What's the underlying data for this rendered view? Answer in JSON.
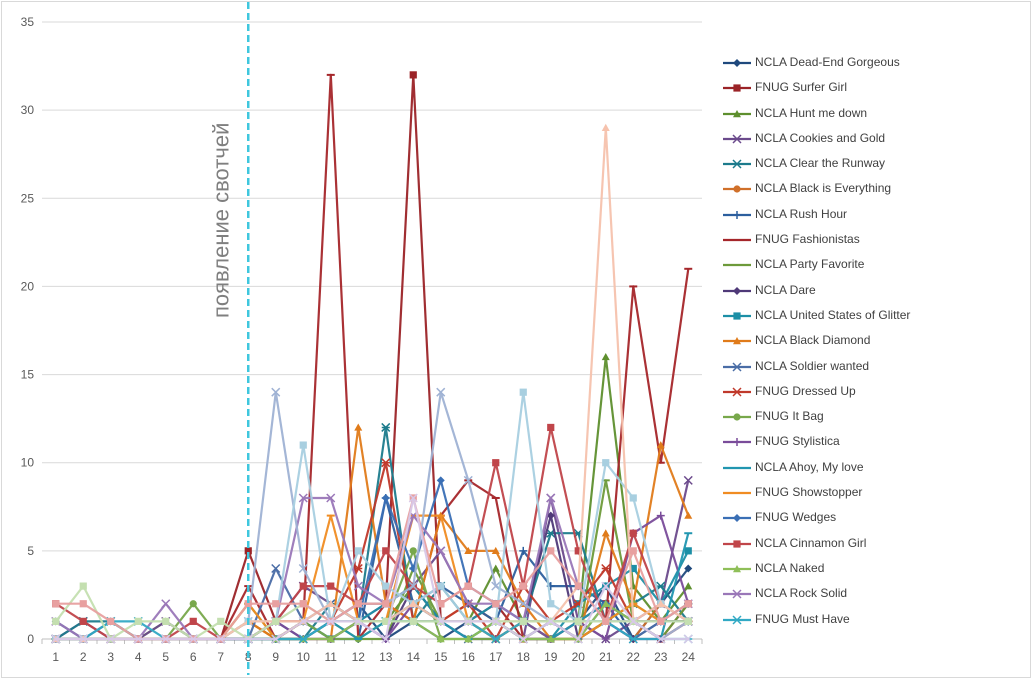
{
  "chart_data": {
    "type": "line",
    "title": "",
    "xlabel": "",
    "ylabel": "",
    "x": [
      1,
      2,
      3,
      4,
      5,
      6,
      7,
      8,
      9,
      10,
      11,
      12,
      13,
      14,
      15,
      16,
      17,
      18,
      19,
      20,
      21,
      22,
      23,
      24
    ],
    "ylim": [
      0,
      35
    ],
    "yticks": [
      0,
      5,
      10,
      15,
      20,
      25,
      30,
      35
    ],
    "grid": "horizontal",
    "legend_position": "right",
    "annotation": {
      "x": 8,
      "text": "появление свотчей",
      "color": "#3fc7de"
    },
    "series": [
      {
        "name": "NCLA Dead-End Gorgeous",
        "color": "#1f497d",
        "marker": "diamond",
        "values": [
          1,
          0,
          1,
          0,
          0,
          0,
          0,
          0,
          1,
          0,
          1,
          2,
          0,
          1,
          0,
          1,
          0,
          1,
          0,
          1,
          3,
          0,
          2,
          4
        ]
      },
      {
        "name": "FNUG Surfer Girl",
        "color": "#9b2327",
        "marker": "square",
        "values": [
          0,
          0,
          0,
          0,
          0,
          0,
          0,
          5,
          1,
          1,
          1,
          2,
          2,
          32,
          1,
          1,
          2,
          0,
          0,
          1,
          2,
          1,
          0,
          2
        ]
      },
      {
        "name": "NCLA Hunt me down",
        "color": "#5e8f2e",
        "marker": "triangle",
        "values": [
          0,
          0,
          0,
          0,
          1,
          0,
          0,
          1,
          0,
          1,
          0,
          1,
          1,
          3,
          1,
          1,
          4,
          1,
          0,
          1,
          16,
          3,
          1,
          3
        ]
      },
      {
        "name": "NCLA Cookies and Gold",
        "color": "#6b4a8c",
        "marker": "x",
        "values": [
          0,
          1,
          0,
          0,
          1,
          0,
          0,
          0,
          1,
          3,
          2,
          1,
          2,
          3,
          5,
          2,
          1,
          0,
          8,
          1,
          0,
          1,
          2,
          9
        ]
      },
      {
        "name": "NCLA Clear the Runway",
        "color": "#1c7b8c",
        "marker": "star",
        "values": [
          0,
          1,
          1,
          0,
          0,
          0,
          0,
          0,
          0,
          0,
          2,
          1,
          12,
          1,
          3,
          1,
          0,
          1,
          6,
          6,
          1,
          2,
          3,
          1
        ]
      },
      {
        "name": "NCLA Black is Everything",
        "color": "#d0702a",
        "marker": "circle",
        "values": [
          0,
          0,
          0,
          0,
          0,
          0,
          0,
          1,
          0,
          1,
          0,
          1,
          1,
          2,
          1,
          2,
          1,
          0,
          0,
          0,
          1,
          0,
          2,
          1
        ]
      },
      {
        "name": "NCLA Rush Hour",
        "color": "#2c5f9e",
        "marker": "plus",
        "values": [
          0,
          0,
          0,
          0,
          0,
          0,
          0,
          0,
          0,
          1,
          0,
          0,
          8,
          2,
          3,
          2,
          1,
          5,
          3,
          3,
          2,
          0,
          1,
          1
        ]
      },
      {
        "name": "FNUG Fashionistas",
        "color": "#a5262a",
        "marker": "dash",
        "values": [
          0,
          0,
          0,
          0,
          0,
          0,
          0,
          3,
          0,
          1,
          32,
          0,
          2,
          1,
          7,
          9,
          8,
          0,
          0,
          0,
          1,
          20,
          10,
          21
        ]
      },
      {
        "name": "NCLA Party Favorite",
        "color": "#6d9a3a",
        "marker": "dash",
        "values": [
          0,
          0,
          0,
          0,
          0,
          0,
          0,
          2,
          0,
          0,
          1,
          0,
          0,
          4,
          1,
          0,
          1,
          0,
          1,
          0,
          9,
          1,
          0,
          2
        ]
      },
      {
        "name": "NCLA Dare",
        "color": "#4f3978",
        "marker": "diamond",
        "values": [
          0,
          0,
          0,
          0,
          0,
          0,
          0,
          0,
          0,
          0,
          0,
          1,
          0,
          3,
          1,
          0,
          0,
          1,
          7,
          0,
          1,
          0,
          0,
          1
        ]
      },
      {
        "name": "NCLA United States of Glitter",
        "color": "#1c8fa6",
        "marker": "square",
        "values": [
          0,
          0,
          0,
          0,
          0,
          0,
          0,
          0,
          0,
          1,
          0,
          1,
          2,
          3,
          1,
          1,
          2,
          1,
          0,
          2,
          3,
          4,
          2,
          5
        ]
      },
      {
        "name": "NCLA Black Diamond",
        "color": "#e07b1a",
        "marker": "triangle",
        "values": [
          0,
          0,
          0,
          0,
          0,
          0,
          0,
          1,
          0,
          0,
          0,
          12,
          2,
          1,
          7,
          5,
          5,
          2,
          0,
          0,
          6,
          2,
          11,
          7
        ]
      },
      {
        "name": "NCLA Soldier wanted",
        "color": "#4a6da6",
        "marker": "x",
        "values": [
          0,
          0,
          0,
          0,
          0,
          0,
          0,
          0,
          4,
          1,
          2,
          1,
          1,
          2,
          1,
          0,
          1,
          0,
          1,
          0,
          1,
          0,
          1,
          1
        ]
      },
      {
        "name": "FNUG Dressed Up",
        "color": "#c0392b",
        "marker": "star",
        "values": [
          0,
          0,
          0,
          0,
          0,
          0,
          0,
          0,
          0,
          0,
          1,
          4,
          10,
          1,
          1,
          2,
          0,
          3,
          1,
          2,
          4,
          1,
          0,
          1
        ]
      },
      {
        "name": "FNUG It Bag",
        "color": "#78a84b",
        "marker": "circle",
        "values": [
          0,
          0,
          0,
          0,
          0,
          2,
          0,
          0,
          0,
          1,
          0,
          0,
          1,
          5,
          0,
          0,
          0,
          1,
          0,
          0,
          1,
          2,
          1,
          1
        ]
      },
      {
        "name": "FNUG Stylistica",
        "color": "#7a4c9a",
        "marker": "plus",
        "values": [
          0,
          0,
          0,
          0,
          0,
          0,
          0,
          0,
          1,
          0,
          0,
          1,
          0,
          2,
          1,
          1,
          0,
          1,
          0,
          1,
          0,
          6,
          7,
          2
        ]
      },
      {
        "name": "NCLA Ahoy, My love",
        "color": "#2196b0",
        "marker": "dash",
        "values": [
          0,
          0,
          0,
          0,
          0,
          0,
          0,
          0,
          0,
          0,
          1,
          0,
          1,
          2,
          1,
          0,
          1,
          0,
          0,
          1,
          2,
          1,
          0,
          6
        ]
      },
      {
        "name": "FNUG Showstopper",
        "color": "#f08c22",
        "marker": "dash",
        "values": [
          0,
          0,
          0,
          0,
          0,
          0,
          0,
          2,
          0,
          1,
          7,
          1,
          1,
          7,
          7,
          1,
          0,
          1,
          1,
          0,
          1,
          2,
          1,
          1
        ]
      },
      {
        "name": "FNUG Wedges",
        "color": "#3a6fb5",
        "marker": "diamond",
        "values": [
          0,
          0,
          0,
          0,
          0,
          0,
          0,
          0,
          0,
          0,
          1,
          1,
          8,
          4,
          9,
          3,
          2,
          1,
          1,
          0,
          2,
          1,
          1,
          1
        ]
      },
      {
        "name": "NCLA Cinnamon Girl",
        "color": "#c0454a",
        "marker": "square",
        "values": [
          2,
          1,
          0,
          0,
          0,
          1,
          0,
          0,
          1,
          3,
          3,
          2,
          5,
          3,
          2,
          3,
          10,
          3,
          12,
          5,
          1,
          6,
          2,
          1
        ]
      },
      {
        "name": "NCLA Naked",
        "color": "#8fbf58",
        "marker": "triangle",
        "values": [
          0,
          0,
          0,
          0,
          0,
          0,
          0,
          0,
          0,
          0,
          0,
          1,
          1,
          1,
          0,
          0,
          1,
          0,
          0,
          0,
          2,
          1,
          1,
          2
        ]
      },
      {
        "name": "NCLA Rock Solid",
        "color": "#9a77b8",
        "marker": "x",
        "values": [
          1,
          0,
          0,
          0,
          2,
          0,
          0,
          0,
          1,
          8,
          8,
          3,
          2,
          7,
          5,
          2,
          2,
          1,
          8,
          3,
          1,
          1,
          1,
          2
        ]
      },
      {
        "name": "FNUG Must Have",
        "color": "#31a9c4",
        "marker": "star",
        "values": [
          0,
          0,
          1,
          1,
          0,
          0,
          0,
          0,
          0,
          0,
          1,
          1,
          1,
          1,
          1,
          1,
          0,
          1,
          1,
          1,
          1,
          0,
          0,
          0
        ]
      },
      {
        "name": "",
        "color": "#9fb2d4",
        "marker": "x",
        "values": [
          0,
          0,
          0,
          0,
          0,
          0,
          0,
          1,
          14,
          4,
          1,
          2,
          2,
          3,
          14,
          9,
          3,
          2,
          1,
          1,
          1,
          1,
          0,
          1
        ]
      },
      {
        "name": "",
        "color": "#a8cfe0",
        "marker": "square",
        "values": [
          0,
          0,
          0,
          0,
          0,
          0,
          0,
          1,
          1,
          11,
          1,
          5,
          3,
          2,
          3,
          1,
          1,
          14,
          2,
          1,
          10,
          8,
          2,
          1
        ]
      },
      {
        "name": "",
        "color": "#f6c2ad",
        "marker": "triangle",
        "values": [
          0,
          0,
          0,
          0,
          0,
          0,
          0,
          1,
          1,
          1,
          2,
          1,
          1,
          2,
          1,
          1,
          1,
          1,
          1,
          3,
          29,
          1,
          2,
          1
        ]
      },
      {
        "name": "",
        "color": "#c4dfb0",
        "marker": "square",
        "values": [
          1,
          3,
          0,
          1,
          1,
          0,
          1,
          0,
          1,
          2,
          1,
          1,
          1,
          1,
          1,
          1,
          1,
          1,
          1,
          1,
          1,
          1,
          1,
          1
        ]
      },
      {
        "name": "",
        "color": "#e8a0a0",
        "marker": "square",
        "values": [
          2,
          2,
          1,
          0,
          0,
          0,
          0,
          2,
          2,
          2,
          1,
          2,
          2,
          8,
          2,
          3,
          2,
          3,
          5,
          3,
          1,
          5,
          1,
          2
        ]
      },
      {
        "name": "",
        "color": "#d8c8e8",
        "marker": "x",
        "values": [
          0,
          0,
          0,
          0,
          0,
          0,
          0,
          0,
          0,
          1,
          1,
          1,
          0,
          8,
          1,
          1,
          1,
          0,
          1,
          0,
          3,
          1,
          0,
          0
        ]
      }
    ]
  }
}
